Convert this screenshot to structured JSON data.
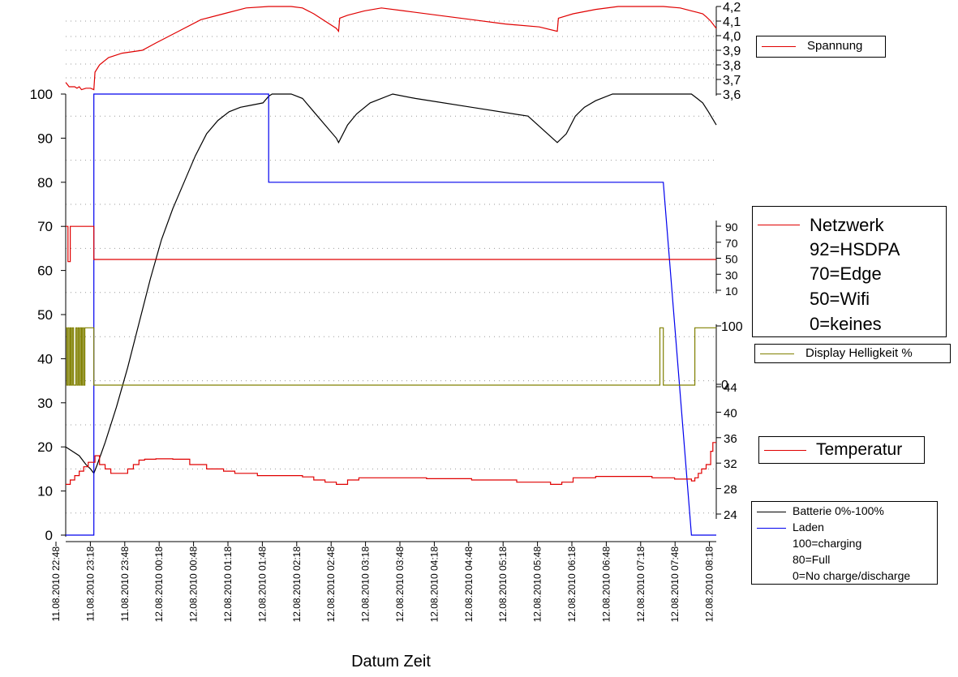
{
  "chart_data": {
    "type": "line",
    "xlabel": "Datum Zeit",
    "x_ticks": [
      "11.08.2010 22:48",
      "11.08.2010 23:18",
      "11.08.2010 23:48",
      "12.08.2010 00:18",
      "12.08.2010 00:48",
      "12.08.2010 01:18",
      "12.08.2010 01:48",
      "12.08.2010 02:18",
      "12.08.2010 02:48",
      "12.08.2010 03:18",
      "12.08.2010 03:48",
      "12.08.2010 04:18",
      "12.08.2010 04:48",
      "12.08.2010 05:18",
      "12.08.2010 05:48",
      "12.08.2010 06:18",
      "12.08.2010 06:48",
      "12.08.2010 07:18",
      "12.08.2010 07:48",
      "12.08.2010 08:18"
    ],
    "x_range_minutes": [
      0,
      577
    ],
    "left_axis": {
      "ylim": [
        0,
        100
      ],
      "ticks": [
        "0",
        "10",
        "20",
        "30",
        "40",
        "50",
        "60",
        "70",
        "80",
        "90",
        "100"
      ]
    },
    "spannung_axis": {
      "ylim": [
        3.6,
        4.2
      ],
      "ticks": [
        "3,6",
        "3,7",
        "3,8",
        "3,9",
        "4,0",
        "4,1",
        "4,2"
      ]
    },
    "netzwerk_axis": {
      "ticks": [
        "10",
        "30",
        "50",
        "70",
        "90"
      ]
    },
    "display_axis": {
      "ticks": [
        "0",
        "100"
      ]
    },
    "temperatur_axis": {
      "ticks": [
        "24",
        "28",
        "32",
        "36",
        "40",
        "44"
      ]
    },
    "series": [
      {
        "name": "Spannung",
        "axis": "spannung",
        "color": "#e00000",
        "step": false,
        "points": [
          [
            0,
            3.68
          ],
          [
            1,
            3.67
          ],
          [
            3,
            3.65
          ],
          [
            8,
            3.65
          ],
          [
            10,
            3.64
          ],
          [
            12,
            3.65
          ],
          [
            14,
            3.63
          ],
          [
            18,
            3.64
          ],
          [
            22,
            3.64
          ],
          [
            25,
            3.63
          ],
          [
            26,
            3.75
          ],
          [
            30,
            3.8
          ],
          [
            38,
            3.85
          ],
          [
            50,
            3.88
          ],
          [
            68,
            3.9
          ],
          [
            80,
            3.95
          ],
          [
            100,
            4.03
          ],
          [
            120,
            4.11
          ],
          [
            140,
            4.15
          ],
          [
            160,
            4.19
          ],
          [
            180,
            4.2
          ],
          [
            200,
            4.2
          ],
          [
            210,
            4.19
          ],
          [
            220,
            4.15
          ],
          [
            230,
            4.1
          ],
          [
            240,
            4.05
          ],
          [
            242,
            4.03
          ],
          [
            243,
            4.12
          ],
          [
            250,
            4.14
          ],
          [
            265,
            4.17
          ],
          [
            280,
            4.19
          ],
          [
            300,
            4.17
          ],
          [
            330,
            4.14
          ],
          [
            360,
            4.11
          ],
          [
            390,
            4.08
          ],
          [
            420,
            4.06
          ],
          [
            436,
            4.03
          ],
          [
            437,
            4.12
          ],
          [
            450,
            4.15
          ],
          [
            470,
            4.18
          ],
          [
            490,
            4.2
          ],
          [
            510,
            4.2
          ],
          [
            530,
            4.2
          ],
          [
            545,
            4.19
          ],
          [
            555,
            4.17
          ],
          [
            560,
            4.16
          ],
          [
            565,
            4.15
          ],
          [
            568,
            4.13
          ],
          [
            572,
            4.1
          ],
          [
            577,
            4.05
          ]
        ]
      },
      {
        "name": "Batterie 0%-100%",
        "axis": "left",
        "color": "#000000",
        "step": false,
        "points": [
          [
            0,
            20
          ],
          [
            6,
            19
          ],
          [
            12,
            18
          ],
          [
            18,
            16
          ],
          [
            22,
            15
          ],
          [
            25,
            14
          ],
          [
            28,
            16
          ],
          [
            35,
            21
          ],
          [
            45,
            29
          ],
          [
            55,
            38
          ],
          [
            65,
            48
          ],
          [
            75,
            58
          ],
          [
            85,
            67
          ],
          [
            95,
            74
          ],
          [
            105,
            80
          ],
          [
            115,
            86
          ],
          [
            125,
            91
          ],
          [
            135,
            94
          ],
          [
            145,
            96
          ],
          [
            155,
            97
          ],
          [
            165,
            97.5
          ],
          [
            175,
            98
          ],
          [
            180,
            99.5
          ],
          [
            183,
            100
          ],
          [
            200,
            100
          ],
          [
            210,
            99
          ],
          [
            220,
            96
          ],
          [
            230,
            93
          ],
          [
            240,
            90
          ],
          [
            242,
            89
          ],
          [
            250,
            93
          ],
          [
            258,
            95.5
          ],
          [
            270,
            98
          ],
          [
            290,
            100
          ],
          [
            310,
            99
          ],
          [
            360,
            97
          ],
          [
            410,
            95
          ],
          [
            436,
            89
          ],
          [
            444,
            91
          ],
          [
            452,
            95
          ],
          [
            460,
            97
          ],
          [
            470,
            98.5
          ],
          [
            485,
            100
          ],
          [
            520,
            100
          ],
          [
            540,
            100
          ],
          [
            555,
            100
          ],
          [
            560,
            99
          ],
          [
            565,
            98
          ],
          [
            570,
            96
          ],
          [
            577,
            93
          ]
        ]
      },
      {
        "name": "Laden",
        "axis": "left",
        "color": "#0000ee",
        "step": false,
        "points": [
          [
            0,
            0
          ],
          [
            25,
            0
          ],
          [
            25,
            100
          ],
          [
            180,
            100
          ],
          [
            180,
            80
          ],
          [
            530,
            80
          ],
          [
            555,
            0
          ],
          [
            577,
            0
          ]
        ]
      },
      {
        "name": "Netzwerk",
        "axis": "left",
        "color": "#e00000",
        "step": true,
        "points": [
          [
            0,
            70
          ],
          [
            2,
            62
          ],
          [
            4,
            70
          ],
          [
            25,
            70
          ],
          [
            25,
            62.5
          ],
          [
            577,
            62.5
          ]
        ]
      },
      {
        "name": "Display Helligkeit %",
        "axis": "left",
        "color": "#808000",
        "step": true,
        "points": [
          [
            0,
            47
          ],
          [
            1,
            34
          ],
          [
            2,
            47
          ],
          [
            3,
            34
          ],
          [
            4,
            47
          ],
          [
            5,
            34
          ],
          [
            6,
            47
          ],
          [
            7,
            34
          ],
          [
            9,
            47
          ],
          [
            10,
            34
          ],
          [
            11,
            47
          ],
          [
            12,
            34
          ],
          [
            13,
            47
          ],
          [
            14,
            34
          ],
          [
            15,
            47
          ],
          [
            16,
            34
          ],
          [
            17,
            47
          ],
          [
            25,
            47
          ],
          [
            25,
            34
          ],
          [
            527,
            34
          ],
          [
            527,
            47
          ],
          [
            530,
            47
          ],
          [
            530,
            34
          ],
          [
            558,
            34
          ],
          [
            558,
            47
          ],
          [
            577,
            47
          ]
        ]
      },
      {
        "name": "Temperatur",
        "axis": "left",
        "color": "#e00000",
        "step": true,
        "points": [
          [
            0,
            11.5
          ],
          [
            4,
            12.5
          ],
          [
            8,
            13.5
          ],
          [
            12,
            14.5
          ],
          [
            16,
            15.5
          ],
          [
            20,
            16.5
          ],
          [
            26,
            18
          ],
          [
            30,
            16
          ],
          [
            35,
            15
          ],
          [
            40,
            14
          ],
          [
            50,
            14
          ],
          [
            55,
            15
          ],
          [
            60,
            16
          ],
          [
            65,
            17
          ],
          [
            70,
            17.2
          ],
          [
            80,
            17.3
          ],
          [
            95,
            17.2
          ],
          [
            110,
            16
          ],
          [
            125,
            15
          ],
          [
            140,
            14.5
          ],
          [
            150,
            14
          ],
          [
            170,
            13.5
          ],
          [
            200,
            13.5
          ],
          [
            210,
            13.2
          ],
          [
            220,
            12.5
          ],
          [
            230,
            12
          ],
          [
            240,
            11.5
          ],
          [
            250,
            12.5
          ],
          [
            260,
            13
          ],
          [
            290,
            13
          ],
          [
            320,
            12.8
          ],
          [
            360,
            12.5
          ],
          [
            400,
            12
          ],
          [
            430,
            11.5
          ],
          [
            440,
            12
          ],
          [
            450,
            13
          ],
          [
            470,
            13.3
          ],
          [
            520,
            13
          ],
          [
            540,
            12.7
          ],
          [
            555,
            12.3
          ],
          [
            558,
            13
          ],
          [
            561,
            14
          ],
          [
            564,
            15
          ],
          [
            568,
            16
          ],
          [
            572,
            19
          ],
          [
            574,
            21
          ],
          [
            577,
            21
          ]
        ]
      }
    ],
    "legends": {
      "spannung": [
        "Spannung"
      ],
      "netzwerk": [
        "Netzwerk",
        "92=HSDPA",
        "70=Edge",
        "50=Wifi",
        "0=keines"
      ],
      "display": [
        "Display Helligkeit %"
      ],
      "temperatur": [
        "Temperatur"
      ],
      "batterie": [
        "Batterie 0%-100%",
        "Laden",
        "100=charging",
        "80=Full",
        "0=No charge/discharge"
      ]
    }
  }
}
